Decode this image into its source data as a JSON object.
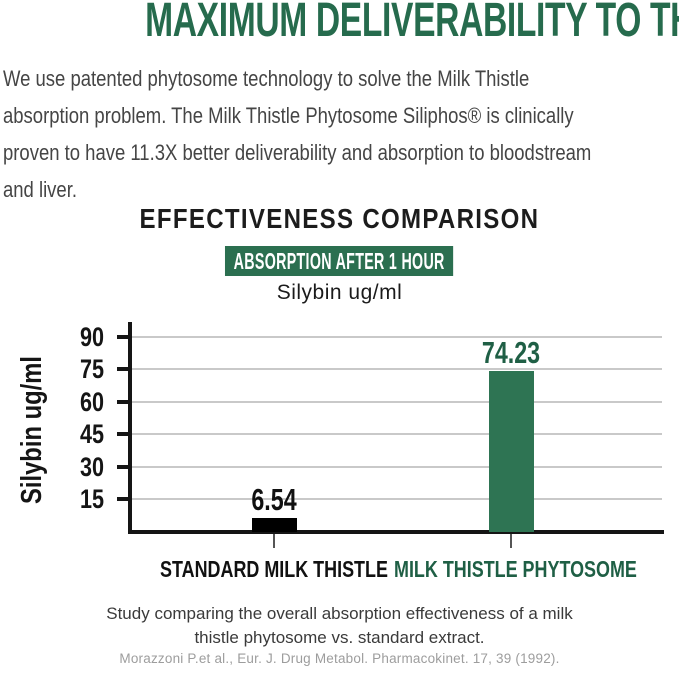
{
  "page": {
    "title": "MAXIMUM DELIVERABILITY TO THE LIVER",
    "intro_lines": [
      "We use patented phytosome technology to solve the Milk Thistle",
      "absorption problem. The Milk Thistle Phytosome Siliphos® is clinically",
      "proven to have 11.3X better deliverability and absorption to bloodstream",
      "and liver."
    ]
  },
  "chart_header": {
    "title": "EFFECTIVENESS COMPARISON",
    "badge": "ABSORPTION AFTER 1 HOUR",
    "subtitle": "Silybin ug/ml"
  },
  "chart_data": {
    "type": "bar",
    "title": "EFFECTIVENESS COMPARISON",
    "subtitle": "ABSORPTION AFTER 1 HOUR",
    "ylabel": "Silybin ug/ml",
    "categories": [
      "STANDARD MILK THISTLE",
      "MILK THISTLE PHYTOSOME"
    ],
    "values": [
      6.54,
      74.23
    ],
    "value_labels": [
      "6.54",
      "74.23"
    ],
    "bar_colors": [
      "#000000",
      "#2E7453"
    ],
    "label_colors": [
      "#111111",
      "#1F5F45"
    ],
    "yticks": [
      15,
      30,
      45,
      60,
      75,
      90
    ],
    "ylim": [
      0,
      97
    ],
    "grid": true,
    "legend": "none"
  },
  "footer": {
    "caption": "Study comparing the overall absorption effectiveness of a milk thistle phytosome vs. standard extract.",
    "citation": "Morazzoni P.et al., Eur. J. Drug Metabol. Pharmacokinet. 17, 39 (1992)."
  },
  "colors": {
    "brand_green": "#266B4D",
    "badge_green": "#2B6F50",
    "bar_green": "#2E7453",
    "green_text": "#1F5F45",
    "gridline": "#C9C9C9",
    "citation_gray": "#9D9D9D"
  }
}
